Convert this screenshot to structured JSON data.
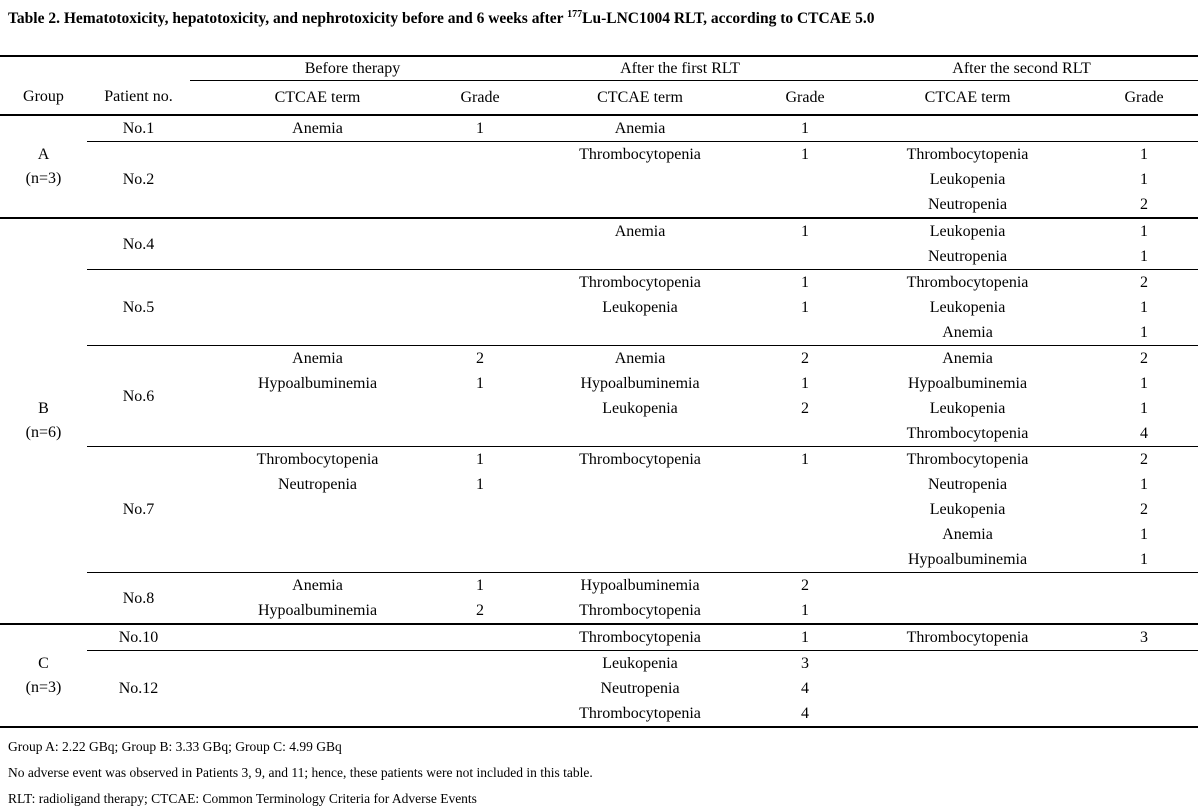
{
  "title": {
    "prefix": "Table 2. Hematotoxicity, hepatotoxicity, and nephrotoxicity before and 6 weeks after ",
    "isotope": "177",
    "suffix": "Lu-LNC1004 RLT, according to CTCAE 5.0"
  },
  "table": {
    "spanners": [
      "Before therapy",
      "After the first RLT",
      "After the second RLT"
    ],
    "columns": [
      "Group",
      "Patient no.",
      "CTCAE term",
      "Grade",
      "CTCAE term",
      "Grade",
      "CTCAE term",
      "Grade"
    ],
    "groups": [
      {
        "label": "A",
        "sublabel": "(n=3)",
        "patients": [
          {
            "id": "No.1",
            "before": [
              {
                "term": "Anemia",
                "grade": "1"
              }
            ],
            "after_first": [
              {
                "term": "Anemia",
                "grade": "1"
              }
            ],
            "after_second": []
          },
          {
            "id": "No.2",
            "before": [],
            "after_first": [
              {
                "term": "Thrombocytopenia",
                "grade": "1"
              }
            ],
            "after_second": [
              {
                "term": "Thrombocytopenia",
                "grade": "1"
              },
              {
                "term": "Leukopenia",
                "grade": "1"
              },
              {
                "term": "Neutropenia",
                "grade": "2"
              }
            ]
          }
        ]
      },
      {
        "label": "B",
        "sublabel": "(n=6)",
        "patients": [
          {
            "id": "No.4",
            "before": [],
            "after_first": [
              {
                "term": "Anemia",
                "grade": "1"
              }
            ],
            "after_second": [
              {
                "term": "Leukopenia",
                "grade": "1"
              },
              {
                "term": "Neutropenia",
                "grade": "1"
              }
            ]
          },
          {
            "id": "No.5",
            "before": [],
            "after_first": [
              {
                "term": "Thrombocytopenia",
                "grade": "1"
              },
              {
                "term": "Leukopenia",
                "grade": "1"
              }
            ],
            "after_second": [
              {
                "term": "Thrombocytopenia",
                "grade": "2"
              },
              {
                "term": "Leukopenia",
                "grade": "1"
              },
              {
                "term": "Anemia",
                "grade": "1"
              }
            ]
          },
          {
            "id": "No.6",
            "before": [
              {
                "term": "Anemia",
                "grade": "2"
              },
              {
                "term": "Hypoalbuminemia",
                "grade": "1"
              }
            ],
            "after_first": [
              {
                "term": "Anemia",
                "grade": "2"
              },
              {
                "term": "Hypoalbuminemia",
                "grade": "1"
              },
              {
                "term": "Leukopenia",
                "grade": "2"
              }
            ],
            "after_second": [
              {
                "term": "Anemia",
                "grade": "2"
              },
              {
                "term": "Hypoalbuminemia",
                "grade": "1"
              },
              {
                "term": "Leukopenia",
                "grade": "1"
              },
              {
                "term": "Thrombocytopenia",
                "grade": "4"
              }
            ]
          },
          {
            "id": "No.7",
            "before": [
              {
                "term": "Thrombocytopenia",
                "grade": "1"
              },
              {
                "term": "Neutropenia",
                "grade": "1"
              }
            ],
            "after_first": [
              {
                "term": "Thrombocytopenia",
                "grade": "1"
              }
            ],
            "after_second": [
              {
                "term": "Thrombocytopenia",
                "grade": "2"
              },
              {
                "term": "Neutropenia",
                "grade": "1"
              },
              {
                "term": "Leukopenia",
                "grade": "2"
              },
              {
                "term": "Anemia",
                "grade": "1"
              },
              {
                "term": "Hypoalbuminemia",
                "grade": "1"
              }
            ]
          },
          {
            "id": "No.8",
            "before": [
              {
                "term": "Anemia",
                "grade": "1"
              },
              {
                "term": "Hypoalbuminemia",
                "grade": "2"
              }
            ],
            "after_first": [
              {
                "term": "Hypoalbuminemia",
                "grade": "2"
              },
              {
                "term": "Thrombocytopenia",
                "grade": "1"
              }
            ],
            "after_second": []
          }
        ]
      },
      {
        "label": "C",
        "sublabel": "(n=3)",
        "patients": [
          {
            "id": "No.10",
            "before": [],
            "after_first": [
              {
                "term": "Thrombocytopenia",
                "grade": "1"
              }
            ],
            "after_second": [
              {
                "term": "Thrombocytopenia",
                "grade": "3"
              }
            ]
          },
          {
            "id": "No.12",
            "before": [],
            "after_first": [
              {
                "term": "Leukopenia",
                "grade": "3"
              },
              {
                "term": "Neutropenia",
                "grade": "4"
              },
              {
                "term": "Thrombocytopenia",
                "grade": "4"
              }
            ],
            "after_second": []
          }
        ]
      }
    ]
  },
  "footnotes": [
    "Group A: 2.22 GBq; Group B: 3.33 GBq; Group C: 4.99 GBq",
    "No adverse event was observed in Patients 3, 9, and 11; hence, these patients were not included in this table.",
    "RLT: radioligand therapy; CTCAE: Common Terminology Criteria for Adverse Events"
  ]
}
